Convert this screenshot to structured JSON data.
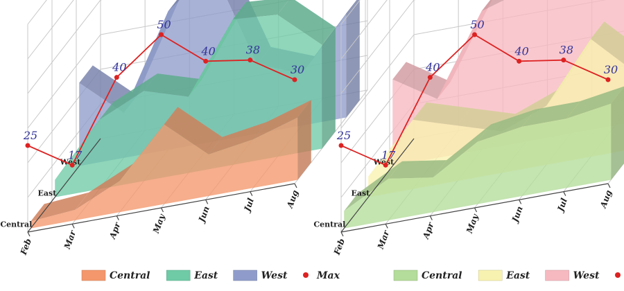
{
  "chart_data": [
    {
      "type": "area",
      "x": [
        "Feb",
        "Mar",
        "Apr",
        "May",
        "Jun",
        "Jul",
        "Aug"
      ],
      "depth_categories": [
        "Central",
        "East",
        "West"
      ],
      "series": [
        {
          "name": "Central",
          "values": [
            2,
            3,
            9,
            23,
            12,
            14,
            18
          ],
          "color": "#f4976c"
        },
        {
          "name": "East",
          "values": [
            5,
            20,
            26,
            22,
            42,
            41,
            30
          ],
          "color": "#6fcaa6"
        },
        {
          "name": "West",
          "values": [
            24,
            13,
            40,
            50,
            20,
            15,
            30
          ],
          "color": "#8f9ccb"
        }
      ],
      "max_values": [
        25,
        17,
        40,
        50,
        40,
        38,
        30
      ],
      "max_label": "Max",
      "max_color": "#dd2222",
      "ylim": [
        0,
        60
      ]
    },
    {
      "type": "area",
      "x": [
        "Feb",
        "Mar",
        "Apr",
        "May",
        "Jun",
        "Jul",
        "Aug"
      ],
      "depth_categories": [
        "Central",
        "East",
        "West"
      ],
      "series": [
        {
          "name": "Central",
          "values": [
            5,
            12,
            10,
            18,
            20,
            20,
            22
          ],
          "color": "#b4dc9a"
        },
        {
          "name": "East",
          "values": [
            6,
            20,
            16,
            12,
            17,
            34,
            22
          ],
          "color": "#f8f2b0"
        },
        {
          "name": "West",
          "values": [
            25,
            17,
            40,
            44,
            40,
            48,
            30
          ],
          "color": "#f7b9c0"
        }
      ],
      "max_values": [
        25,
        17,
        40,
        50,
        40,
        38,
        30
      ],
      "max_label": "Max",
      "max_color": "#dd2222",
      "ylim": [
        0,
        60
      ]
    }
  ]
}
